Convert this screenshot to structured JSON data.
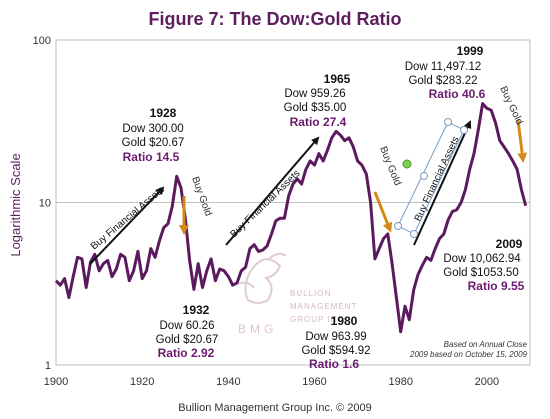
{
  "colors": {
    "title": "#5c1f5e",
    "series": "#5c1a5e",
    "gold_arrow": "#d4891b",
    "black_arrow": "#111111",
    "ratio_text": "#6a1b6e",
    "grid": "#c0c0c0"
  },
  "chart_data": {
    "type": "line",
    "title": "Figure 7: The Dow:Gold Ratio",
    "ylabel": "Logarithmic Scale",
    "xlabel": "",
    "yscale": "log",
    "xlim": [
      1900,
      2010
    ],
    "ylim": [
      1,
      100
    ],
    "x_ticks": [
      "1900",
      "1920",
      "1940",
      "1960",
      "1980",
      "2000"
    ],
    "y_ticks": [
      "1",
      "10",
      "100"
    ],
    "grid": "horizontal at 10",
    "series": [
      {
        "name": "",
        "x": [
          1900,
          1901,
          1902,
          1903,
          1904,
          1905,
          1906,
          1907,
          1908,
          1909,
          1910,
          1911,
          1912,
          1913,
          1914,
          1915,
          1916,
          1917,
          1918,
          1919,
          1920,
          1921,
          1922,
          1923,
          1924,
          1925,
          1926,
          1927,
          1928,
          1929,
          1930,
          1931,
          1932,
          1933,
          1934,
          1935,
          1936,
          1937,
          1938,
          1939,
          1940,
          1941,
          1942,
          1943,
          1944,
          1945,
          1946,
          1947,
          1948,
          1949,
          1950,
          1951,
          1952,
          1953,
          1954,
          1955,
          1956,
          1957,
          1958,
          1959,
          1960,
          1961,
          1962,
          1963,
          1964,
          1965,
          1966,
          1967,
          1968,
          1969,
          1970,
          1971,
          1972,
          1973,
          1974,
          1975,
          1976,
          1977,
          1978,
          1979,
          1980,
          1981,
          1982,
          1983,
          1984,
          1985,
          1986,
          1987,
          1988,
          1989,
          1990,
          1991,
          1992,
          1993,
          1994,
          1995,
          1996,
          1997,
          1998,
          1999,
          2000,
          2001,
          2002,
          2003,
          2004,
          2005,
          2006,
          2007,
          2008,
          2009
        ],
        "values": [
          3.3,
          3.1,
          3.4,
          2.6,
          3.5,
          4.6,
          4.5,
          3.0,
          4.3,
          4.8,
          3.8,
          4.2,
          4.4,
          3.5,
          3.9,
          4.8,
          4.6,
          3.3,
          3.8,
          5.0,
          3.4,
          3.8,
          5.2,
          4.6,
          5.8,
          7.0,
          7.4,
          9.5,
          14.5,
          12.3,
          8.0,
          4.4,
          2.92,
          4.2,
          3.0,
          3.8,
          4.5,
          3.3,
          3.9,
          3.8,
          3.5,
          3.1,
          3.2,
          3.8,
          4.0,
          5.2,
          5.5,
          5.0,
          5.1,
          5.4,
          6.4,
          7.7,
          8.0,
          8.0,
          11.0,
          13.0,
          14.0,
          13.0,
          16.0,
          18.0,
          17.0,
          20.0,
          18.0,
          21.0,
          25.0,
          27.4,
          26.0,
          24.0,
          25.0,
          22.0,
          18.0,
          17.0,
          15.0,
          10.0,
          4.5,
          5.2,
          6.0,
          6.4,
          4.2,
          2.6,
          1.6,
          2.3,
          1.9,
          2.9,
          3.6,
          4.1,
          4.6,
          4.4,
          5.2,
          6.0,
          6.4,
          7.8,
          8.8,
          9.0,
          10.0,
          12.0,
          16.0,
          20.0,
          28.0,
          40.6,
          38.0,
          37.0,
          31.0,
          24.0,
          22.0,
          20.0,
          18.0,
          16.0,
          12.0,
          9.55
        ]
      }
    ],
    "annotations": [
      {
        "year": "1928",
        "lines": [
          "Dow 300.00",
          "Gold $20.67"
        ],
        "ratio": "Ratio 14.5"
      },
      {
        "year": "1932",
        "lines": [
          "Dow 60.26",
          "Gold $20.67"
        ],
        "ratio": "Ratio 2.92"
      },
      {
        "year": "1965",
        "lines": [
          "Dow 959.26",
          "Gold $35.00"
        ],
        "ratio": "Ratio 27.4"
      },
      {
        "year": "1980",
        "lines": [
          "Dow 963.99",
          "Gold $594.92"
        ],
        "ratio": "Ratio 1.6"
      },
      {
        "year": "1999",
        "lines": [
          "Dow 11,497.12",
          "Gold $283.22"
        ],
        "ratio": "Ratio 40.6"
      },
      {
        "year": "2009",
        "lines": [
          "Dow 10,062.94",
          "Gold $1053.50"
        ],
        "ratio": "Ratio 9.55"
      }
    ],
    "arrow_labels": [
      "Buy Financial Assets",
      "Buy Financial Assets",
      "Buy Financial Assets"
    ],
    "gold_labels": [
      "Buy Gold",
      "Buy Gold",
      "Buy Gold"
    ],
    "notes": [
      "Based on Annual Close",
      "2009 based on October 15, 2009"
    ]
  },
  "logo": {
    "letters": "BMG",
    "name_lines": [
      "BULLION",
      "MANAGEMENT",
      "GROUP INC."
    ]
  },
  "footer": "Bullion Management Group Inc. © 2009"
}
